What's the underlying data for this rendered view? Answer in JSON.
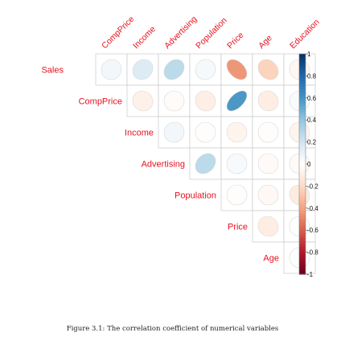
{
  "chart_data": {
    "type": "heatmap",
    "variables": [
      "Sales",
      "CompPrice",
      "Income",
      "Advertising",
      "Population",
      "Price",
      "Age",
      "Education"
    ],
    "matrix": [
      [
        1.0,
        0.06,
        0.15,
        0.27,
        0.05,
        -0.44,
        -0.23,
        -0.05
      ],
      [
        0.06,
        1.0,
        -0.08,
        -0.02,
        -0.09,
        0.58,
        -0.1,
        0.03
      ],
      [
        0.15,
        -0.08,
        1.0,
        0.06,
        -0.01,
        -0.06,
        -0.01,
        -0.06
      ],
      [
        0.27,
        -0.02,
        0.06,
        1.0,
        0.27,
        0.04,
        -0.03,
        -0.03
      ],
      [
        0.05,
        -0.09,
        -0.01,
        0.27,
        1.0,
        -0.01,
        -0.04,
        -0.11
      ],
      [
        -0.44,
        0.58,
        -0.06,
        0.04,
        -0.01,
        1.0,
        -0.1,
        0.01
      ],
      [
        -0.23,
        -0.1,
        -0.01,
        -0.03,
        -0.04,
        -0.1,
        1.0,
        0.01
      ],
      [
        -0.05,
        0.03,
        -0.06,
        -0.03,
        -0.11,
        0.01,
        0.01,
        1.0
      ]
    ],
    "diagonal_shown": false,
    "triangle": "upper",
    "label_color": "#e8121f",
    "colorbar": {
      "range": [
        -1,
        1
      ],
      "ticks": [
        "1",
        "0.8",
        "0.6",
        "0.4",
        "0.2",
        "0",
        "-0.2",
        "-0.4",
        "-0.6",
        "-0.8",
        "-1"
      ],
      "positive_color": "#053061",
      "negative_color": "#67001f",
      "mid_color": "#ffffff"
    }
  },
  "caption": "Figure 3.1: The correlation coefficient of numerical variables"
}
